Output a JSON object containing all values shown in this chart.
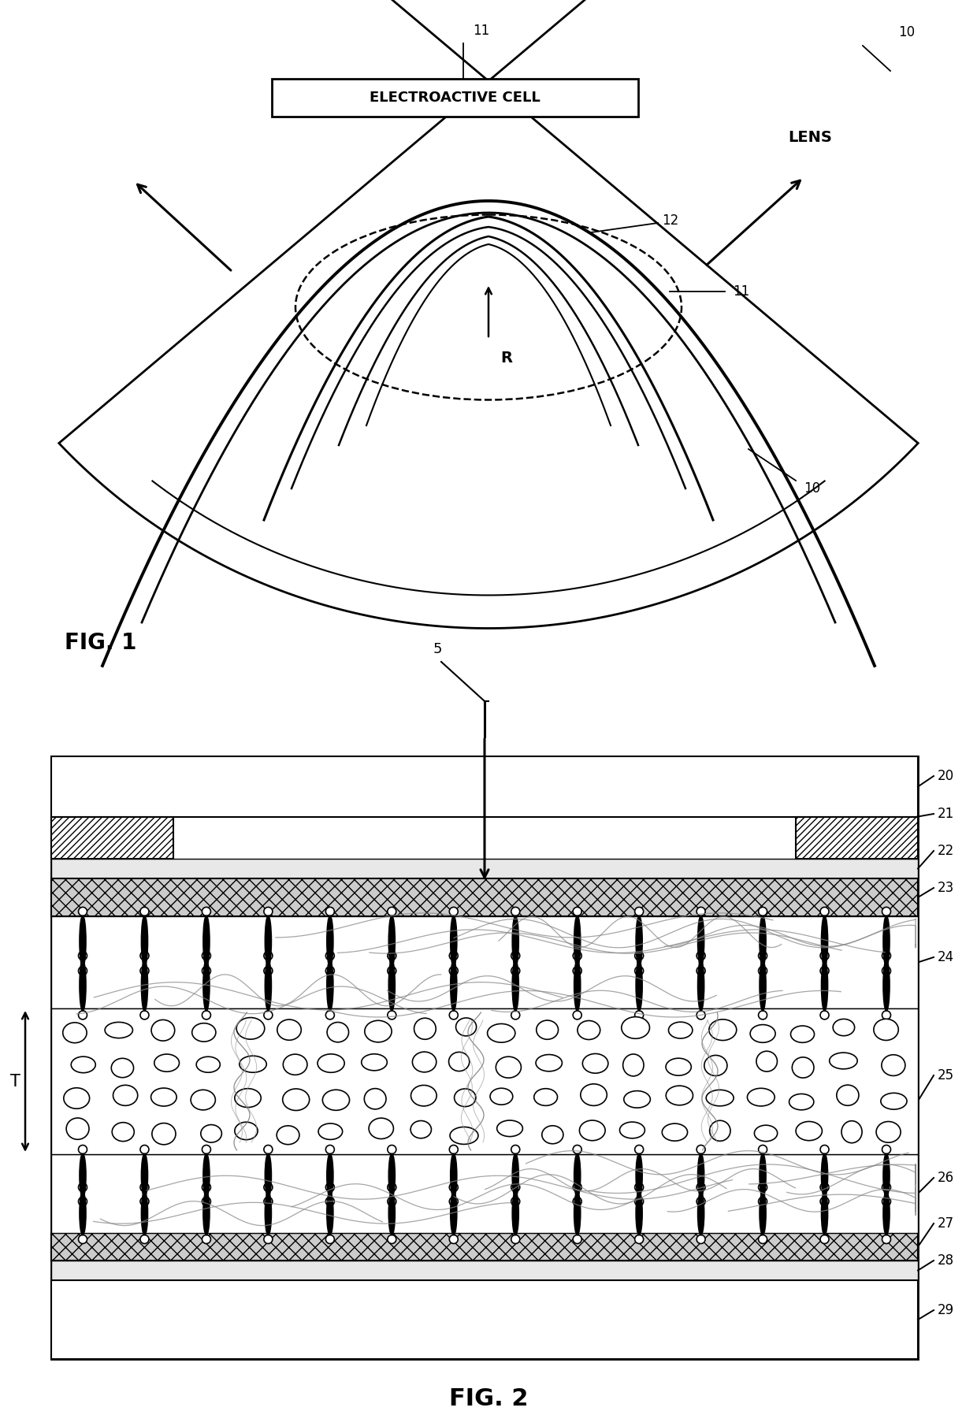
{
  "fig_width": 12.4,
  "fig_height": 18.1,
  "bg_color": "#ffffff",
  "fig1_label": "FIG. 1",
  "fig2_label": "FIG. 2",
  "label_10_top": "10",
  "label_11_top": "11",
  "label_10_mid": "10",
  "label_11_mid": "11",
  "label_12": "12",
  "label_R": "R",
  "label_5": "5",
  "label_T": "T",
  "label_20": "20",
  "label_21": "21",
  "label_22": "22",
  "label_23": "23",
  "label_24": "24",
  "label_25": "25",
  "label_26": "26",
  "label_27": "27",
  "label_28": "28",
  "label_29": "29",
  "electroactive_text": "ELECTROACTIVE CELL",
  "lens_text": "LENS"
}
